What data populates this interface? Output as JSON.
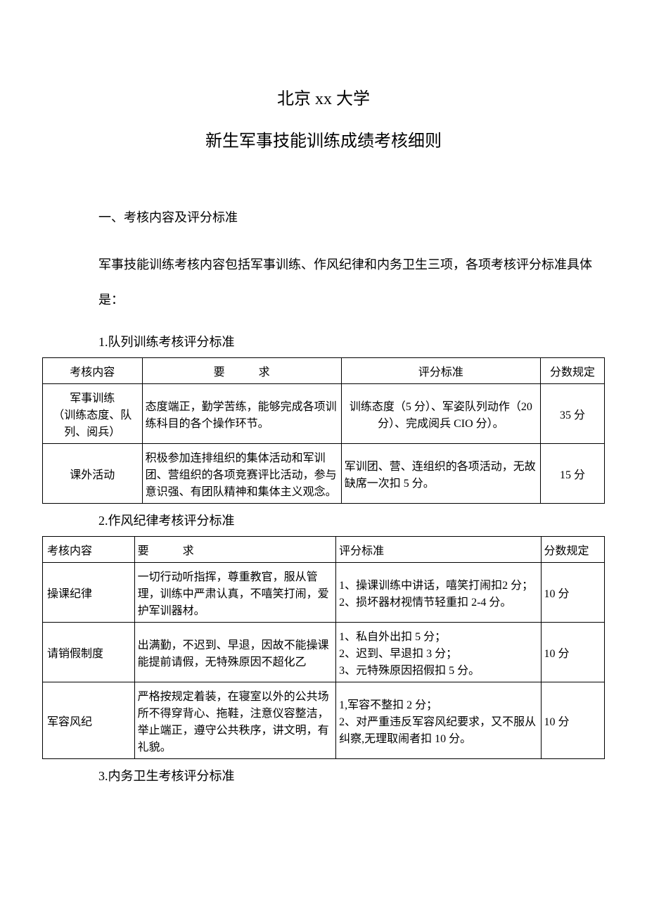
{
  "title_main": "北京 xx 大学",
  "title_sub": "新生军事技能训练成绩考核细则",
  "section1_heading": "一、考核内容及评分标准",
  "body_text": "军事技能训练考核内容包括军事训练、作风纪律和内务卫生三项，各项考核评分标准具体是：",
  "table1_heading": "1.队列训练考核评分标准",
  "table1": {
    "headers": {
      "content": "考核内容",
      "req": "要　　　求",
      "score": "评分标准",
      "points": "分数规定"
    },
    "rows": [
      {
        "content": "军事训练\n（训练态度、队列、阅兵）",
        "req": "态度端正，勤学苦练，能够完成各项训练科目的各个操作环节。",
        "score": "训练态度（5 分）、军姿队列动作（20 分）、完成阅兵 CIO 分）。",
        "points": "35 分"
      },
      {
        "content": "课外活动",
        "req": "积极参加连排组织的集体活动和军训团、营组织的各项竞赛评比活动，参与意识强、有团队精神和集体主义观念。",
        "score": "军训团、营、连组织的各项活动，无故缺席一次扣 5 分。",
        "points": "15 分"
      }
    ]
  },
  "table2_heading": "2.作风纪律考核评分标准",
  "table2": {
    "headers": {
      "content": "考核内容",
      "req": "要　　　求",
      "score": "评分标准",
      "points": "分数规定"
    },
    "rows": [
      {
        "content": "操课纪律",
        "req": "一切行动听指挥，尊重教官，服从管理，训练中严肃认真，不嘻笑打闹，爱护军训器材。",
        "score": "1、操课训练中讲话，嘻笑打闹扣2 分；\n2、损坏器材视情节轻重扣 2-4 分。",
        "points": "10 分"
      },
      {
        "content": "请销假制度",
        "req": "出满勤，不迟到、早退，因故不能操课能提前请假，无特殊原因不超化乙",
        "score": "1、私自外出扣 5 分；\n2、迟到、早退扣 3 分；\n3、元特殊原因招假扣 5 分。",
        "points": "10 分"
      },
      {
        "content": "军容风纪",
        "req": "严格按规定着装，在寝室以外的公共场所不得穿背心、拖鞋，注意仪容整洁，举止端正，遵守公共秩序，讲文明，有礼貌。",
        "score": "1,军容不整扣 2 分；\n2、对严重违反军容风纪要求，又不服从纠察,无理取闹者扣 10 分。",
        "points": "10 分"
      }
    ]
  },
  "table3_heading": "3.内务卫生考核评分标准"
}
